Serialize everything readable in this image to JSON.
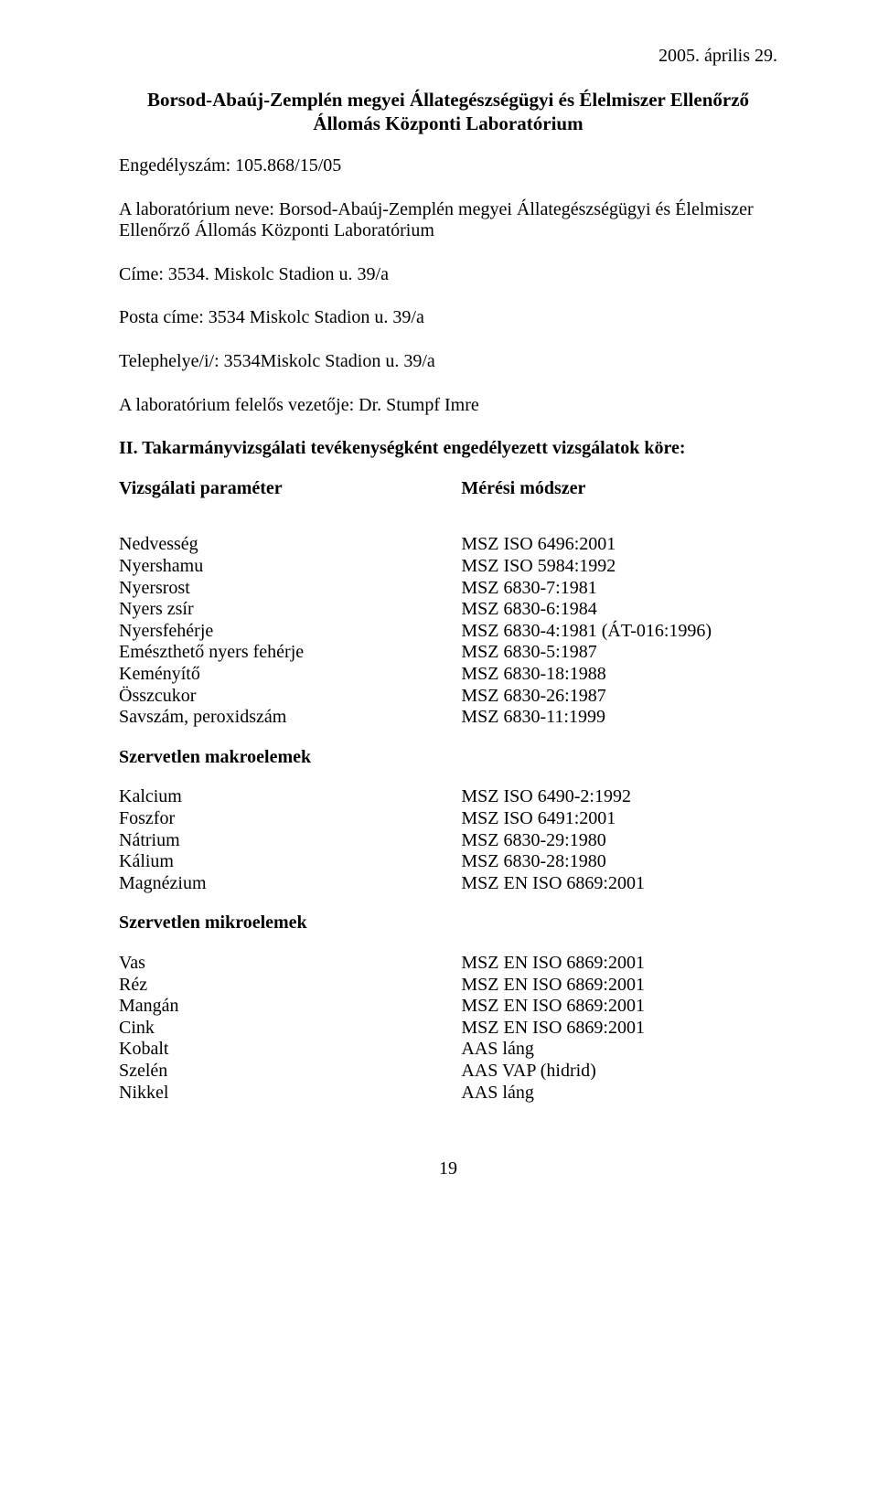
{
  "date": "2005. április 29.",
  "title_line1": "Borsod-Abaúj-Zemplén megyei Állategészségügyi és Élelmiszer Ellenőrző",
  "title_line2": "Állomás Központi Laboratórium",
  "license_label": "Engedélyszám: 105.868/15/05",
  "lab_name_label": "A laboratórium neve: Borsod-Abaúj-Zemplén megyei Állategészségügyi és Élelmiszer",
  "lab_name_line2": "Ellenőrző Állomás Központi Laboratórium",
  "address": "Címe: 3534. Miskolc Stadion u. 39/a",
  "postal": "Posta címe: 3534 Miskolc Stadion u. 39/a",
  "site": "Telephelye/i/: 3534Miskolc Stadion u. 39/a",
  "director": "A laboratórium felelős vezetője: Dr. Stumpf Imre",
  "section2_title": "II. Takarmányvizsgálati tevékenységként engedélyezett vizsgálatok köre:",
  "col_left_head": "Vizsgálati paraméter",
  "col_right_head": "Mérési módszer",
  "basic": {
    "params": [
      "Nedvesség",
      "Nyershamu",
      "Nyersrost",
      "Nyers zsír",
      "Nyersfehérje",
      "Emészthető nyers fehérje",
      "Keményítő",
      "Összcukor",
      "Savszám, peroxidszám"
    ],
    "methods": [
      "MSZ ISO 6496:2001",
      "MSZ ISO 5984:1992",
      "MSZ 6830-7:1981",
      "MSZ 6830-6:1984",
      "MSZ 6830-4:1981 (ÁT-016:1996)",
      "MSZ 6830-5:1987",
      "MSZ 6830-18:1988",
      "MSZ 6830-26:1987",
      "MSZ 6830-11:1999"
    ]
  },
  "macro_head": "Szervetlen makroelemek",
  "macro": {
    "params": [
      "Kalcium",
      "Foszfor",
      "Nátrium",
      "Kálium",
      "Magnézium"
    ],
    "methods": [
      "MSZ ISO 6490-2:1992",
      "MSZ ISO 6491:2001",
      "MSZ 6830-29:1980",
      "MSZ 6830-28:1980",
      "MSZ EN ISO 6869:2001"
    ]
  },
  "micro_head": "Szervetlen mikroelemek",
  "micro": {
    "params": [
      "Vas",
      "Réz",
      "Mangán",
      "Cink",
      "Kobalt",
      "Szelén",
      "Nikkel"
    ],
    "methods": [
      "MSZ EN ISO 6869:2001",
      "MSZ EN ISO 6869:2001",
      "MSZ EN ISO 6869:2001",
      "MSZ EN ISO 6869:2001",
      "AAS láng",
      "AAS VAP (hidrid)",
      "AAS láng"
    ]
  },
  "page_number": "19"
}
